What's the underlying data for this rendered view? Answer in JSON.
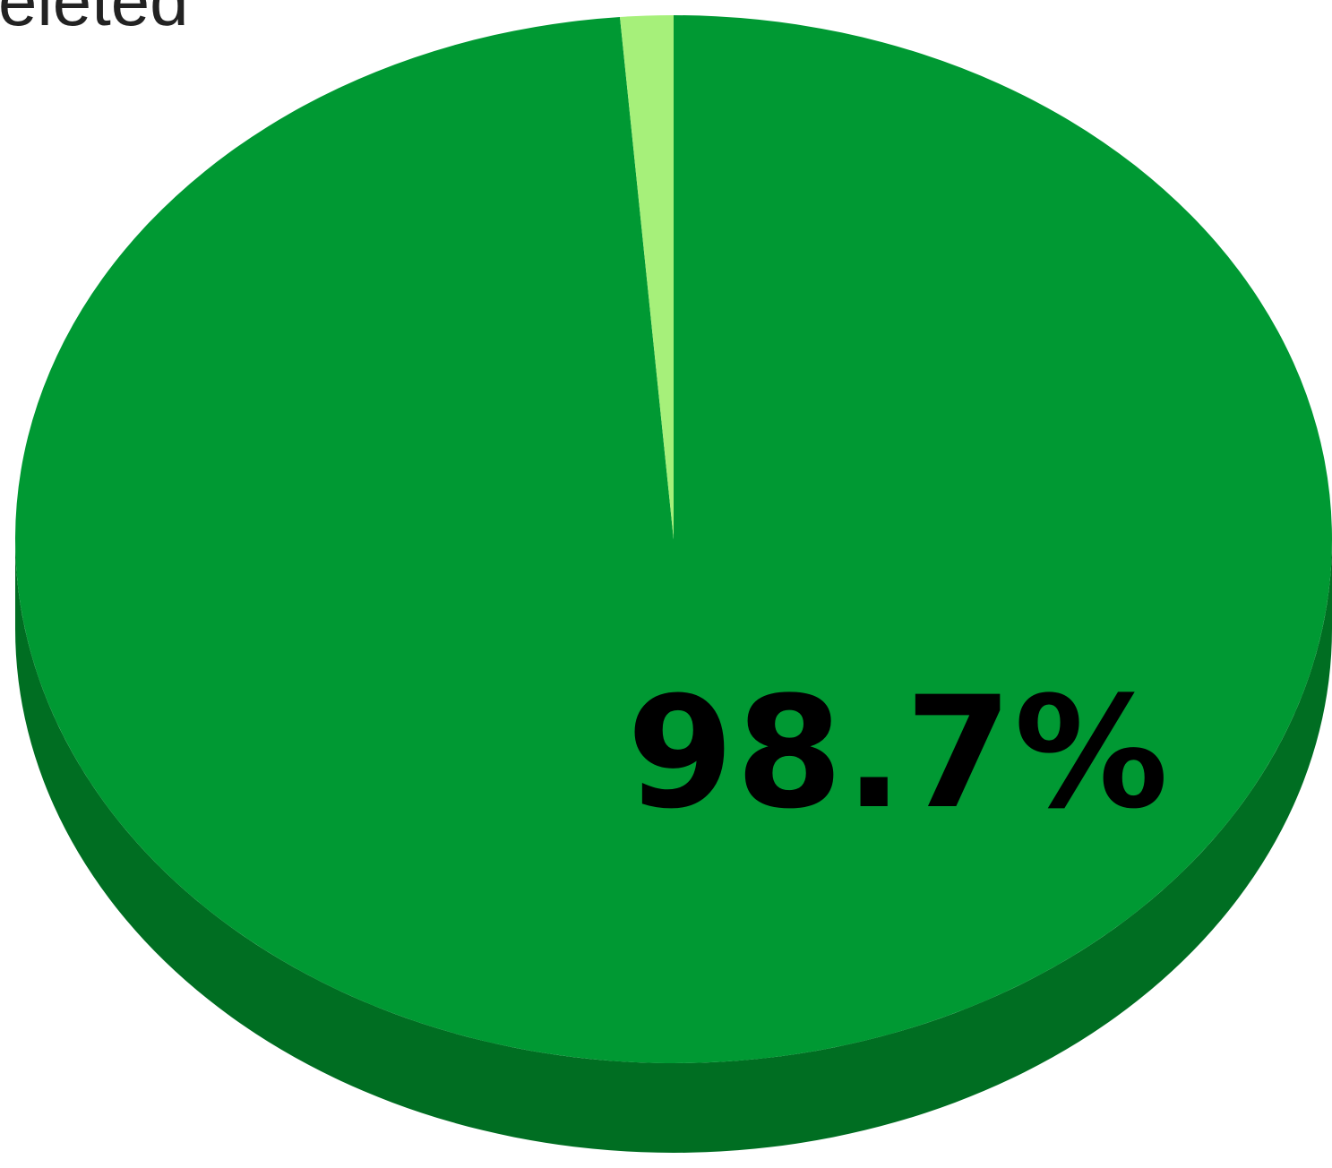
{
  "chart_data": {
    "type": "pie",
    "style": "3d",
    "slices": [
      {
        "label": "98.7%",
        "value": 98.7,
        "color": "#009933",
        "side_color": "#006e22"
      },
      {
        "label": "",
        "value": 1.3,
        "color": "#a6f07a",
        "side_color": "#7cc45a"
      }
    ],
    "data_labels": [
      "98.7%"
    ],
    "annotations": [
      "eleted"
    ],
    "legend": "none"
  }
}
